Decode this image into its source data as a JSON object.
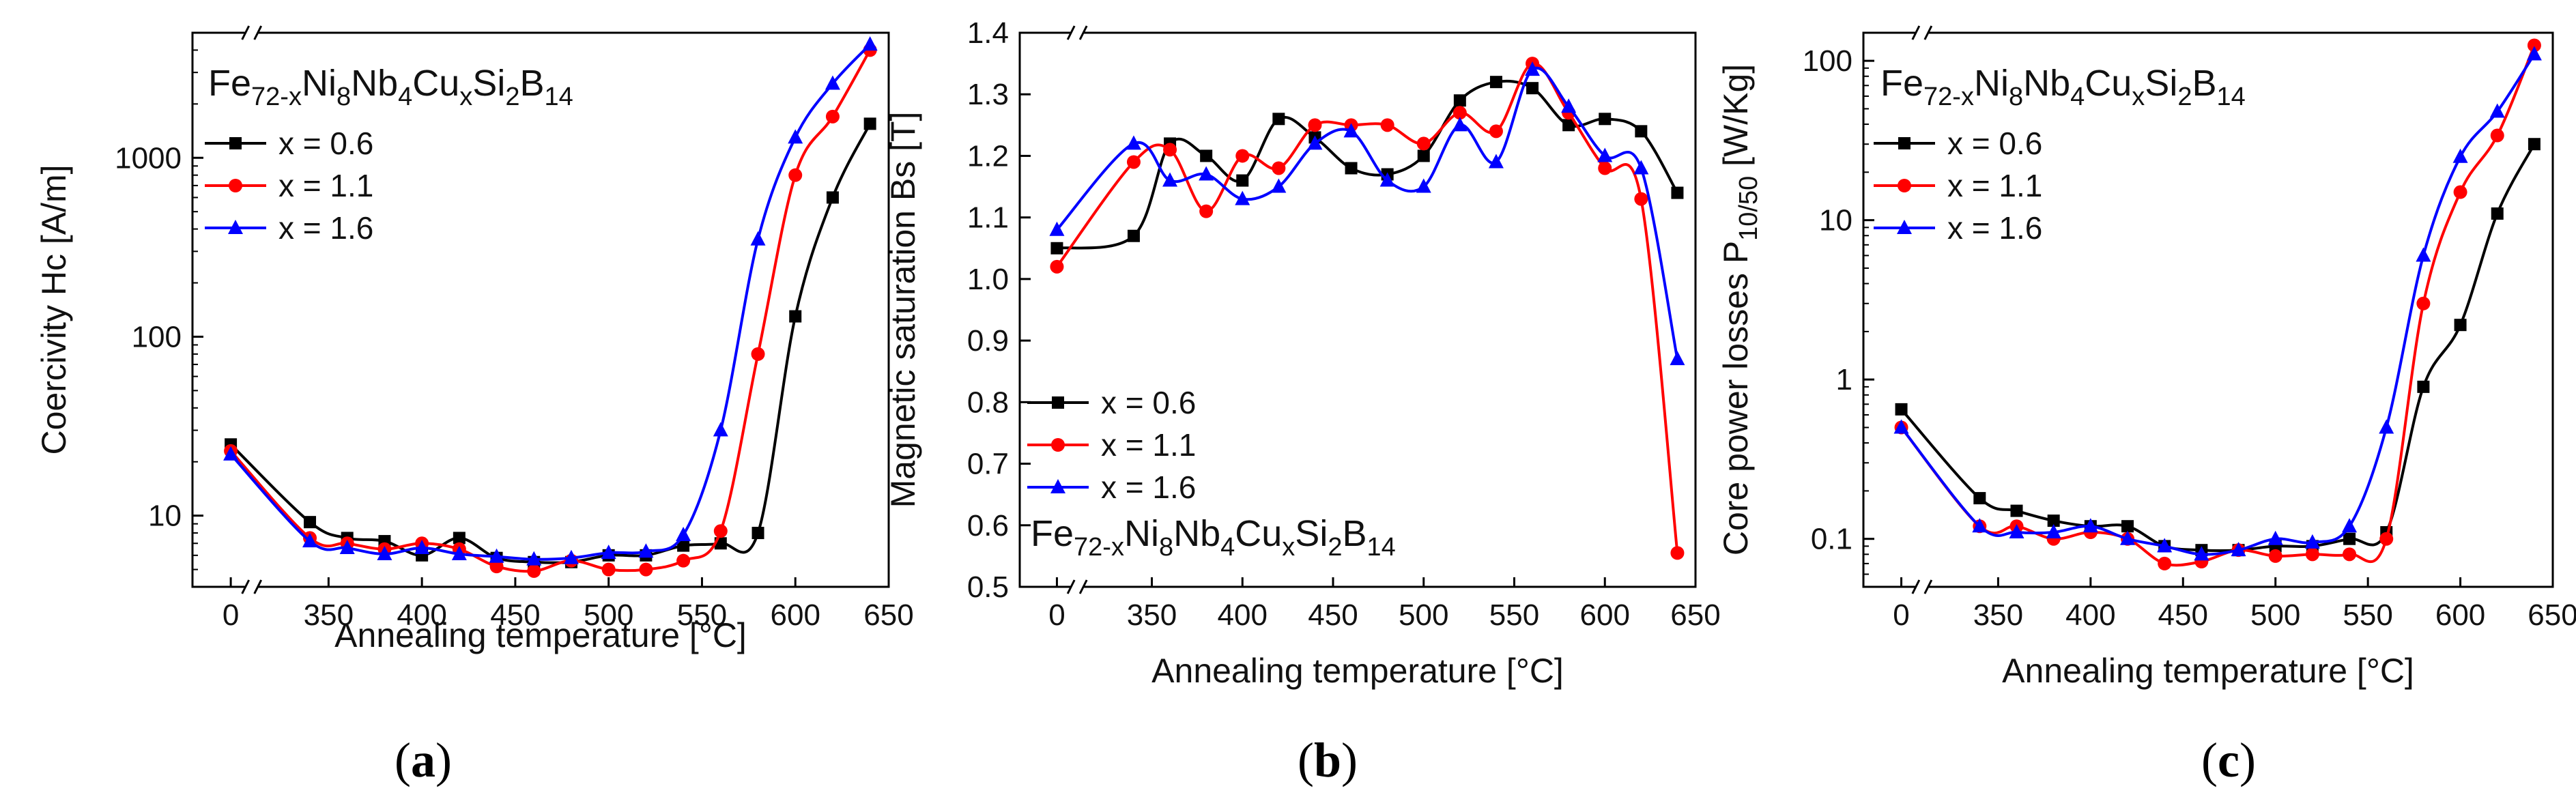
{
  "chart_data": [
    {
      "panel_label": "a",
      "type": "line",
      "formula": {
        "base": "Fe",
        "s1": "72-x",
        "t1": "Ni",
        "s2": "8",
        "t2": "Nb",
        "s3": "4",
        "t3": "Cu",
        "s4": "x",
        "t4": "Si",
        "s5": "2",
        "t5": "B",
        "s6": "14"
      },
      "xlabel": "Annealing temperature [°C]",
      "ylabel": "Coercivity Hc [A/m]",
      "yscale": "log",
      "ylim": [
        4,
        5000
      ],
      "xlim": [
        0,
        650
      ],
      "break_x": true,
      "xticks": [
        0,
        350,
        400,
        450,
        500,
        550,
        600,
        650
      ],
      "yticks": [
        10,
        100,
        1000
      ],
      "yticklabels": [
        "10",
        "100",
        "1000"
      ],
      "legend": "top-left",
      "series": [
        {
          "name": "x = 0.6",
          "color": "#000000",
          "marker": "square",
          "x": [
            0,
            340,
            360,
            380,
            400,
            420,
            440,
            460,
            480,
            500,
            520,
            540,
            560,
            580,
            600,
            620,
            640
          ],
          "y": [
            25,
            9.2,
            7.5,
            7.2,
            6.0,
            7.5,
            5.8,
            5.5,
            5.5,
            6.0,
            6.0,
            6.8,
            7.0,
            8.0,
            130,
            600,
            1550
          ]
        },
        {
          "name": "x = 1.1",
          "color": "#ff0000",
          "marker": "circle",
          "x": [
            0,
            340,
            360,
            380,
            400,
            420,
            440,
            460,
            480,
            500,
            520,
            540,
            560,
            580,
            600,
            620,
            640
          ],
          "y": [
            23,
            7.5,
            7.0,
            6.5,
            7.0,
            6.5,
            5.2,
            4.9,
            5.6,
            5.0,
            5.0,
            5.6,
            8.2,
            80,
            800,
            1700,
            4000
          ]
        },
        {
          "name": "x = 1.6",
          "color": "#0000ff",
          "marker": "triangle",
          "x": [
            0,
            340,
            360,
            380,
            400,
            420,
            440,
            460,
            480,
            500,
            520,
            540,
            560,
            580,
            600,
            620,
            640
          ],
          "y": [
            22,
            7.2,
            6.6,
            6.1,
            6.6,
            6.1,
            5.9,
            5.7,
            5.8,
            6.2,
            6.3,
            7.8,
            30,
            350,
            1300,
            2600,
            4300
          ]
        }
      ]
    },
    {
      "panel_label": "b",
      "type": "line",
      "formula": {
        "base": "Fe",
        "s1": "72-x",
        "t1": "Ni",
        "s2": "8",
        "t2": "Nb",
        "s3": "4",
        "t3": "Cu",
        "s4": "x",
        "t4": "Si",
        "s5": "2",
        "t5": "B",
        "s6": "14"
      },
      "xlabel": "Annealing temperature [°C]",
      "ylabel": "Magnetic saturation Bs [T]",
      "yscale": "linear",
      "ylim": [
        0.5,
        1.4
      ],
      "xlim": [
        0,
        650
      ],
      "break_x": true,
      "xticks": [
        0,
        350,
        400,
        450,
        500,
        550,
        600,
        650
      ],
      "yticks": [
        0.5,
        0.6,
        0.7,
        0.8,
        0.9,
        1.0,
        1.1,
        1.2,
        1.3,
        1.4
      ],
      "yticklabels": [
        "0.5",
        "0.6",
        "0.7",
        "0.8",
        "0.9",
        "1.0",
        "1.1",
        "1.2",
        "1.3",
        "1.4"
      ],
      "legend": "left-middle",
      "series": [
        {
          "name": "x = 0.6",
          "color": "#000000",
          "marker": "square",
          "x": [
            0,
            340,
            360,
            380,
            400,
            420,
            440,
            460,
            480,
            500,
            520,
            540,
            560,
            580,
            600,
            620,
            640
          ],
          "y": [
            1.05,
            1.07,
            1.22,
            1.2,
            1.16,
            1.26,
            1.23,
            1.18,
            1.17,
            1.2,
            1.29,
            1.32,
            1.31,
            1.25,
            1.26,
            1.24,
            1.14
          ]
        },
        {
          "name": "x = 1.1",
          "color": "#ff0000",
          "marker": "circle",
          "x": [
            0,
            340,
            360,
            380,
            400,
            420,
            440,
            460,
            480,
            500,
            520,
            540,
            560,
            580,
            600,
            620,
            640
          ],
          "y": [
            1.02,
            1.19,
            1.21,
            1.11,
            1.2,
            1.18,
            1.25,
            1.25,
            1.25,
            1.22,
            1.27,
            1.24,
            1.35,
            1.27,
            1.18,
            1.13,
            0.555
          ]
        },
        {
          "name": "x = 1.6",
          "color": "#0000ff",
          "marker": "triangle",
          "x": [
            0,
            340,
            360,
            380,
            400,
            420,
            440,
            460,
            480,
            500,
            520,
            540,
            560,
            580,
            600,
            620,
            640
          ],
          "y": [
            1.08,
            1.22,
            1.16,
            1.17,
            1.13,
            1.15,
            1.22,
            1.24,
            1.16,
            1.15,
            1.25,
            1.19,
            1.34,
            1.28,
            1.2,
            1.18,
            0.87
          ]
        }
      ]
    },
    {
      "panel_label": "c",
      "type": "line",
      "formula": {
        "base": "Fe",
        "s1": "72-x",
        "t1": "Ni",
        "s2": "8",
        "t2": "Nb",
        "s3": "4",
        "t3": "Cu",
        "s4": "x",
        "t4": "Si",
        "s5": "2",
        "t5": "B",
        "s6": "14"
      },
      "xlabel": "Annealing temperature [°C]",
      "ylabel_main": "Core power losses P",
      "ylabel_sub": "10/50",
      "ylabel_unit": " [W/Kg]",
      "yscale": "log",
      "ylim": [
        0.05,
        150
      ],
      "xlim": [
        0,
        650
      ],
      "break_x": true,
      "xticks": [
        0,
        350,
        400,
        450,
        500,
        550,
        600,
        650
      ],
      "yticks": [
        0.1,
        1,
        10,
        100
      ],
      "yticklabels": [
        "0.1",
        "1",
        "10",
        "100"
      ],
      "legend": "top-left",
      "series": [
        {
          "name": "x = 0.6",
          "color": "#000000",
          "marker": "square",
          "x": [
            0,
            340,
            360,
            380,
            400,
            420,
            440,
            460,
            480,
            500,
            520,
            540,
            560,
            580,
            600,
            620,
            640
          ],
          "y": [
            0.65,
            0.18,
            0.15,
            0.13,
            0.12,
            0.12,
            0.09,
            0.085,
            0.085,
            0.09,
            0.09,
            0.1,
            0.11,
            0.9,
            2.2,
            11,
            30
          ]
        },
        {
          "name": "x = 1.1",
          "color": "#ff0000",
          "marker": "circle",
          "x": [
            0,
            340,
            360,
            380,
            400,
            420,
            440,
            460,
            480,
            500,
            520,
            540,
            560,
            580,
            600,
            620,
            640
          ],
          "y": [
            0.5,
            0.12,
            0.12,
            0.1,
            0.11,
            0.1,
            0.07,
            0.072,
            0.085,
            0.078,
            0.08,
            0.08,
            0.1,
            3.0,
            15,
            34,
            125
          ]
        },
        {
          "name": "x = 1.6",
          "color": "#0000ff",
          "marker": "triangle",
          "x": [
            0,
            340,
            360,
            380,
            400,
            420,
            440,
            460,
            480,
            500,
            520,
            540,
            560,
            580,
            600,
            620,
            640
          ],
          "y": [
            0.5,
            0.12,
            0.11,
            0.11,
            0.12,
            0.1,
            0.09,
            0.08,
            0.085,
            0.1,
            0.095,
            0.12,
            0.5,
            6.0,
            25,
            48,
            110
          ]
        }
      ]
    }
  ]
}
